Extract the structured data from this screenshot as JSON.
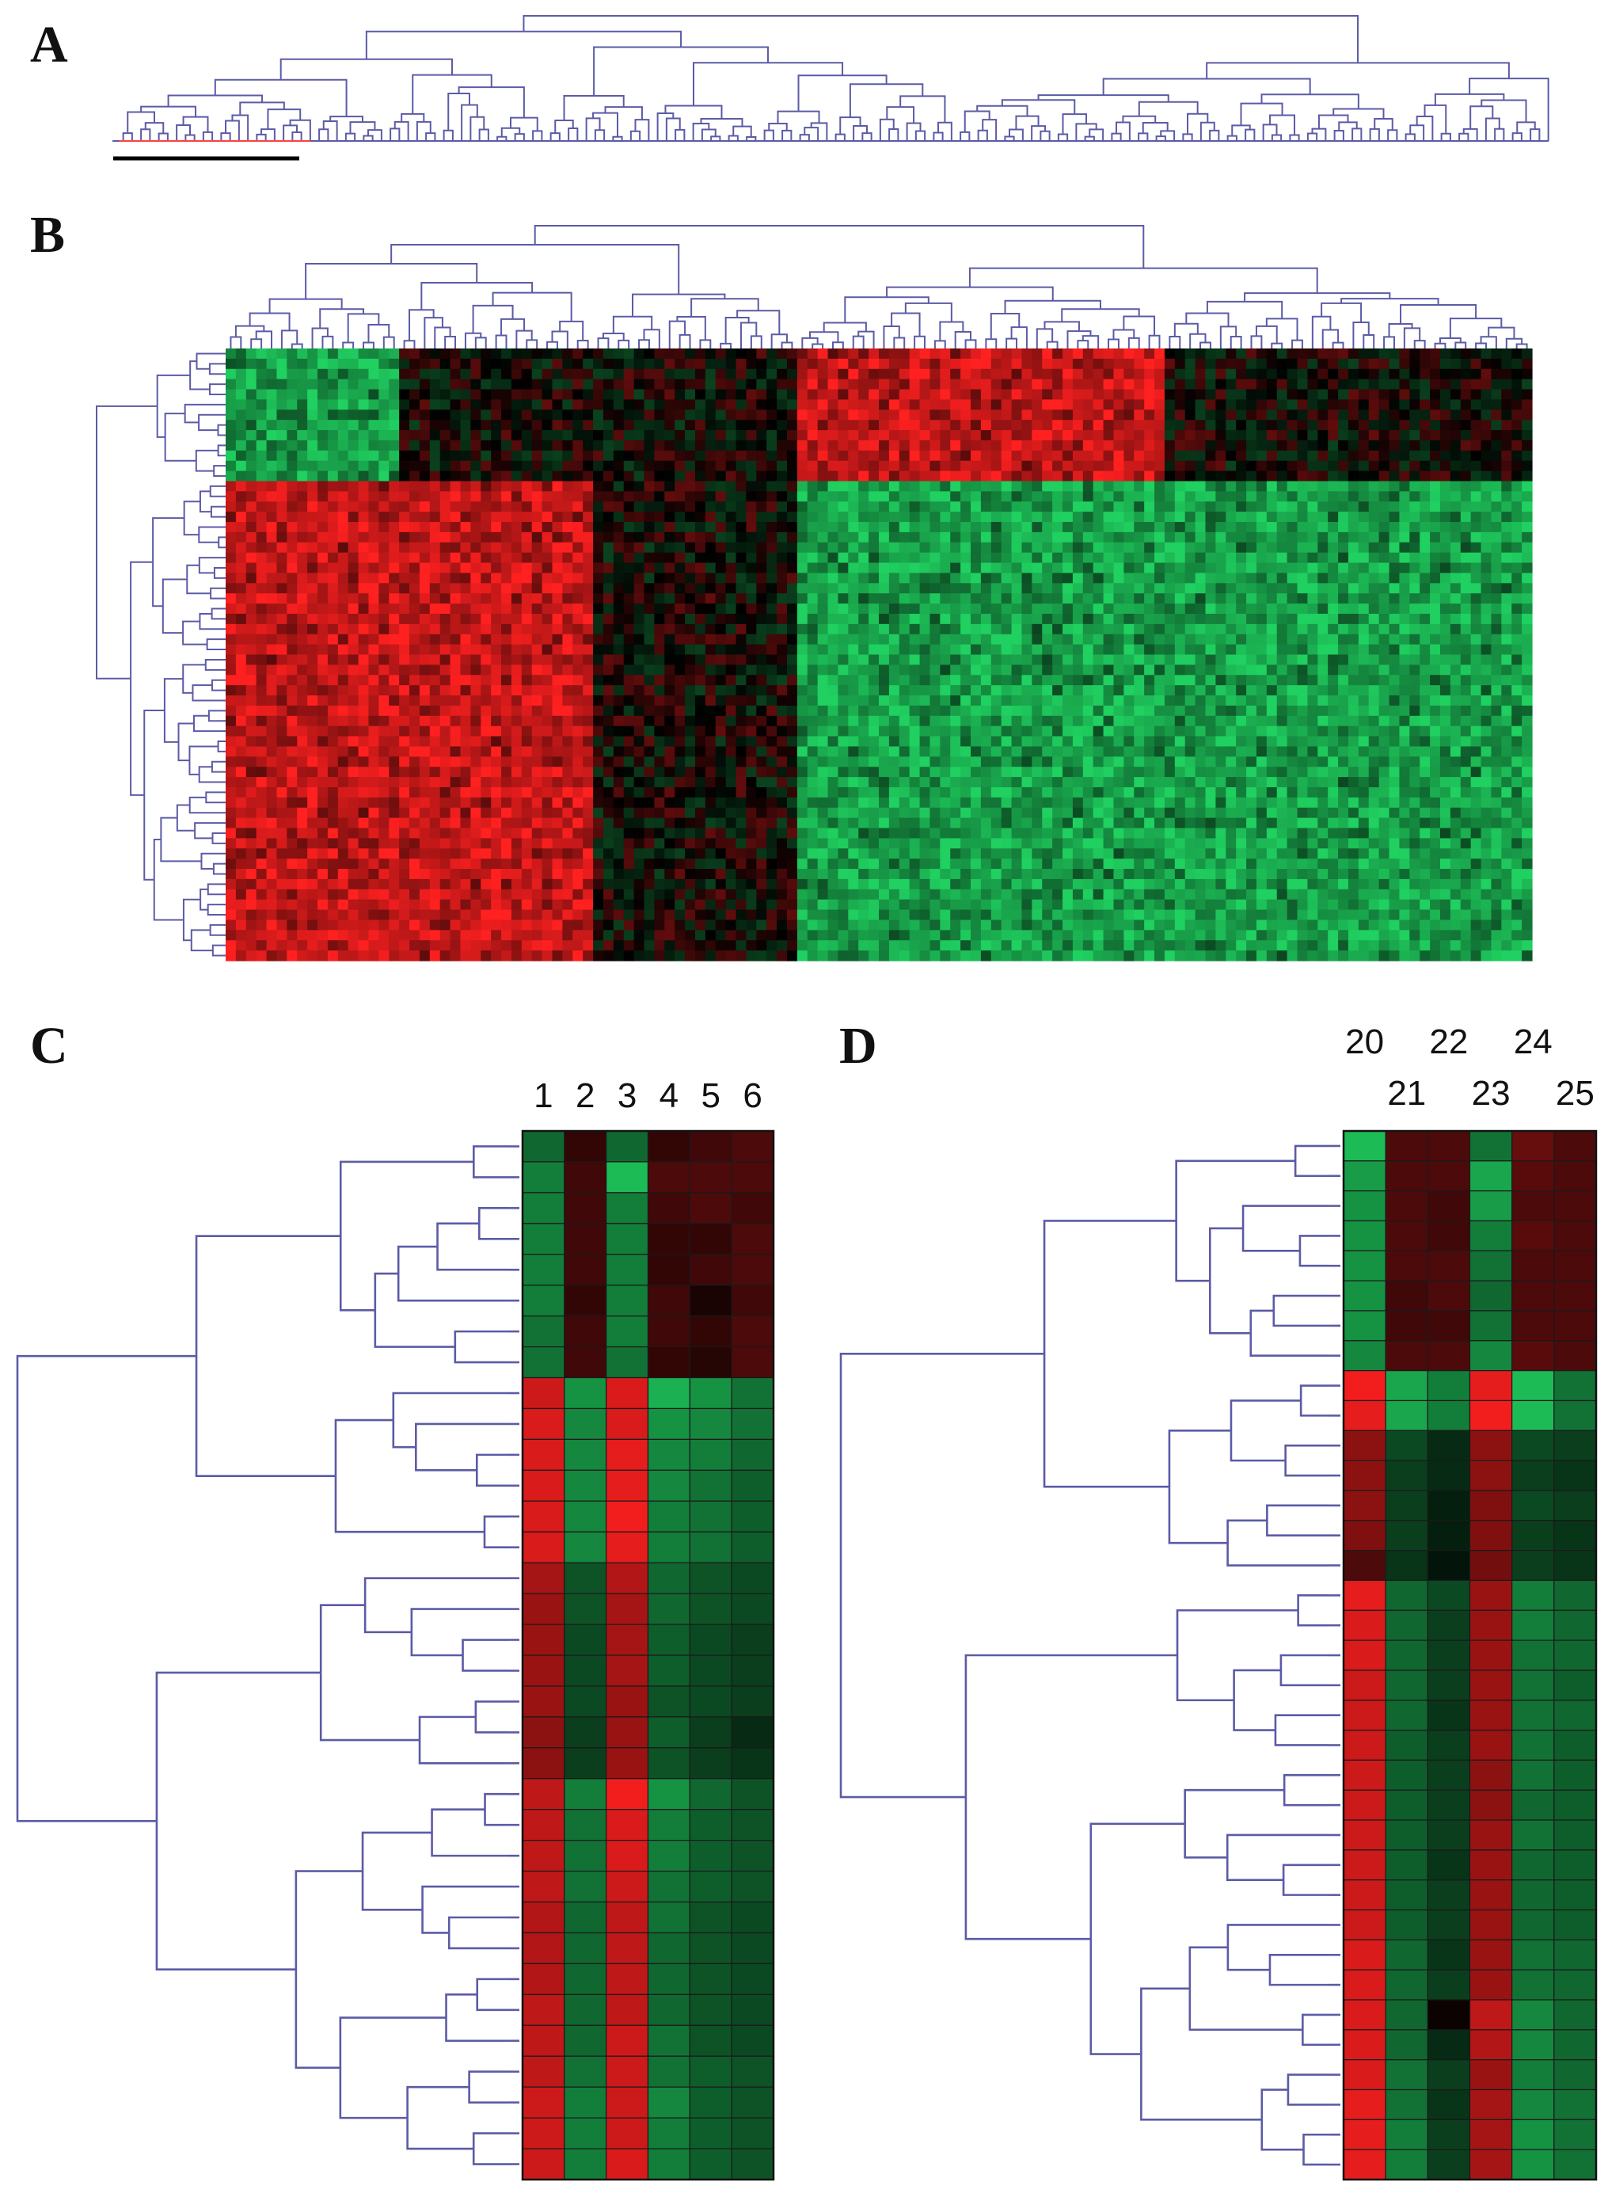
{
  "panels": {
    "a": {
      "letter": "A"
    },
    "b": {
      "letter": "B"
    },
    "c": {
      "letter": "C",
      "column_labels": [
        "1",
        "2",
        "3",
        "4",
        "5",
        "6"
      ]
    },
    "d": {
      "letter": "D",
      "column_labels": [
        "20",
        "21",
        "22",
        "23",
        "24",
        "25"
      ]
    }
  },
  "colors": {
    "up": "#ff2020",
    "down": "#20d060",
    "neutral": "#000000",
    "dendrogram": "#5b5ba6",
    "selection_bar": "#000000",
    "selected_leaves": "#ff4040"
  },
  "chart_data": [
    {
      "panel": "A",
      "type": "dendrogram",
      "orientation": "top",
      "leaves": 160,
      "highlighted_cluster_leaves": 22
    },
    {
      "panel": "B",
      "type": "heatmap",
      "color_scale": [
        "green",
        "black",
        "red"
      ],
      "rows": 60,
      "columns": 128,
      "row_groups": [
        {
          "rows": 13,
          "sample_pattern": [
            "green",
            "black",
            "black",
            "red",
            "black"
          ]
        },
        {
          "rows": 47,
          "sample_pattern": [
            "red",
            "red",
            "black",
            "green",
            "green"
          ]
        }
      ],
      "column_groups": [
        17,
        19,
        20,
        36,
        36
      ]
    },
    {
      "panel": "C",
      "type": "heatmap",
      "color_scale": [
        "green",
        "black",
        "red"
      ],
      "columns": [
        "1",
        "2",
        "3",
        "4",
        "5",
        "6"
      ],
      "values": [
        [
          -0.5,
          0.2,
          -0.5,
          0.2,
          0.25,
          0.3
        ],
        [
          -0.6,
          0.25,
          -0.9,
          0.3,
          0.3,
          0.3
        ],
        [
          -0.6,
          0.25,
          -0.6,
          0.25,
          0.3,
          0.25
        ],
        [
          -0.6,
          0.25,
          -0.6,
          0.2,
          0.2,
          0.3
        ],
        [
          -0.6,
          0.25,
          -0.6,
          0.2,
          0.25,
          0.3
        ],
        [
          -0.6,
          0.2,
          -0.6,
          0.25,
          0.1,
          0.25
        ],
        [
          -0.55,
          0.25,
          -0.6,
          0.25,
          0.2,
          0.3
        ],
        [
          -0.55,
          0.25,
          -0.55,
          0.2,
          0.15,
          0.3
        ],
        [
          0.8,
          -0.7,
          0.85,
          -0.85,
          -0.7,
          -0.55
        ],
        [
          0.85,
          -0.65,
          0.85,
          -0.7,
          -0.65,
          -0.55
        ],
        [
          0.85,
          -0.65,
          0.9,
          -0.65,
          -0.6,
          -0.5
        ],
        [
          0.85,
          -0.65,
          0.9,
          -0.65,
          -0.55,
          -0.45
        ],
        [
          0.85,
          -0.65,
          0.95,
          -0.6,
          -0.55,
          -0.45
        ],
        [
          0.85,
          -0.65,
          0.9,
          -0.6,
          -0.55,
          -0.45
        ],
        [
          0.65,
          -0.4,
          0.7,
          -0.5,
          -0.4,
          -0.35
        ],
        [
          0.6,
          -0.4,
          0.65,
          -0.5,
          -0.4,
          -0.35
        ],
        [
          0.6,
          -0.35,
          0.65,
          -0.45,
          -0.35,
          -0.3
        ],
        [
          0.6,
          -0.35,
          0.65,
          -0.45,
          -0.35,
          -0.3
        ],
        [
          0.6,
          -0.35,
          0.6,
          -0.4,
          -0.35,
          -0.3
        ],
        [
          0.55,
          -0.3,
          0.6,
          -0.45,
          -0.3,
          -0.2
        ],
        [
          0.55,
          -0.3,
          0.6,
          -0.4,
          -0.3,
          -0.25
        ],
        [
          0.75,
          -0.6,
          0.95,
          -0.7,
          -0.5,
          -0.4
        ],
        [
          0.75,
          -0.55,
          0.85,
          -0.6,
          -0.45,
          -0.4
        ],
        [
          0.75,
          -0.55,
          0.85,
          -0.6,
          -0.45,
          -0.4
        ],
        [
          0.75,
          -0.55,
          0.8,
          -0.55,
          -0.45,
          -0.4
        ],
        [
          0.7,
          -0.5,
          0.75,
          -0.55,
          -0.4,
          -0.35
        ],
        [
          0.7,
          -0.5,
          0.75,
          -0.5,
          -0.4,
          -0.35
        ],
        [
          0.7,
          -0.5,
          0.75,
          -0.5,
          -0.4,
          -0.35
        ],
        [
          0.75,
          -0.5,
          0.75,
          -0.5,
          -0.4,
          -0.35
        ],
        [
          0.75,
          -0.5,
          0.8,
          -0.55,
          -0.4,
          -0.35
        ],
        [
          0.75,
          -0.55,
          0.8,
          -0.55,
          -0.45,
          -0.4
        ],
        [
          0.8,
          -0.6,
          0.8,
          -0.65,
          -0.45,
          -0.4
        ],
        [
          0.8,
          -0.6,
          0.8,
          -0.6,
          -0.45,
          -0.4
        ],
        [
          0.8,
          -0.6,
          0.85,
          -0.6,
          -0.45,
          -0.4
        ]
      ]
    },
    {
      "panel": "D",
      "type": "heatmap",
      "color_scale": [
        "green",
        "black",
        "red"
      ],
      "columns": [
        "20",
        "21",
        "22",
        "23",
        "24",
        "25"
      ],
      "values": [
        [
          -0.9,
          0.3,
          0.3,
          -0.55,
          0.4,
          0.3
        ],
        [
          -0.75,
          0.3,
          0.3,
          -0.8,
          0.35,
          0.3
        ],
        [
          -0.7,
          0.3,
          0.25,
          -0.75,
          0.3,
          0.3
        ],
        [
          -0.7,
          0.3,
          0.25,
          -0.6,
          0.35,
          0.3
        ],
        [
          -0.7,
          0.3,
          0.3,
          -0.55,
          0.3,
          0.3
        ],
        [
          -0.7,
          0.25,
          0.3,
          -0.5,
          0.3,
          0.3
        ],
        [
          -0.7,
          0.25,
          0.25,
          -0.55,
          0.3,
          0.3
        ],
        [
          -0.65,
          0.3,
          0.3,
          -0.65,
          0.35,
          0.3
        ],
        [
          0.95,
          -0.8,
          -0.6,
          0.9,
          -0.9,
          -0.55
        ],
        [
          0.9,
          -0.8,
          -0.6,
          0.95,
          -0.9,
          -0.55
        ],
        [
          0.55,
          -0.35,
          -0.2,
          0.55,
          -0.35,
          -0.3
        ],
        [
          0.55,
          -0.3,
          -0.2,
          0.55,
          -0.3,
          -0.25
        ],
        [
          0.55,
          -0.3,
          -0.15,
          0.5,
          -0.35,
          -0.3
        ],
        [
          0.5,
          -0.3,
          -0.15,
          0.5,
          -0.3,
          -0.25
        ],
        [
          0.3,
          -0.25,
          -0.1,
          0.45,
          -0.3,
          -0.25
        ],
        [
          0.9,
          -0.5,
          -0.35,
          0.6,
          -0.6,
          -0.5
        ],
        [
          0.85,
          -0.5,
          -0.3,
          0.6,
          -0.6,
          -0.5
        ],
        [
          0.85,
          -0.5,
          -0.3,
          0.6,
          -0.55,
          -0.5
        ],
        [
          0.8,
          -0.5,
          -0.3,
          0.6,
          -0.55,
          -0.45
        ],
        [
          0.8,
          -0.5,
          -0.25,
          0.6,
          -0.55,
          -0.5
        ],
        [
          0.8,
          -0.45,
          -0.3,
          0.6,
          -0.55,
          -0.45
        ],
        [
          0.8,
          -0.45,
          -0.3,
          0.55,
          -0.55,
          -0.45
        ],
        [
          0.8,
          -0.45,
          -0.3,
          0.55,
          -0.5,
          -0.45
        ],
        [
          0.8,
          -0.45,
          -0.3,
          0.6,
          -0.55,
          -0.45
        ],
        [
          0.8,
          -0.45,
          -0.25,
          0.6,
          -0.5,
          -0.45
        ],
        [
          0.8,
          -0.45,
          -0.3,
          0.6,
          -0.5,
          -0.45
        ],
        [
          0.8,
          -0.45,
          -0.3,
          0.6,
          -0.5,
          -0.45
        ],
        [
          0.85,
          -0.5,
          -0.25,
          0.6,
          -0.55,
          -0.5
        ],
        [
          0.85,
          -0.5,
          -0.3,
          0.6,
          -0.55,
          -0.5
        ],
        [
          0.85,
          -0.5,
          0.05,
          0.75,
          -0.65,
          -0.5
        ],
        [
          0.85,
          -0.5,
          -0.2,
          0.7,
          -0.65,
          -0.5
        ],
        [
          0.85,
          -0.55,
          -0.3,
          0.6,
          -0.6,
          -0.5
        ],
        [
          0.9,
          -0.55,
          -0.25,
          0.65,
          -0.65,
          -0.55
        ],
        [
          0.9,
          -0.6,
          -0.3,
          0.65,
          -0.7,
          -0.55
        ],
        [
          0.9,
          -0.6,
          -0.3,
          0.65,
          -0.7,
          -0.55
        ]
      ]
    }
  ]
}
